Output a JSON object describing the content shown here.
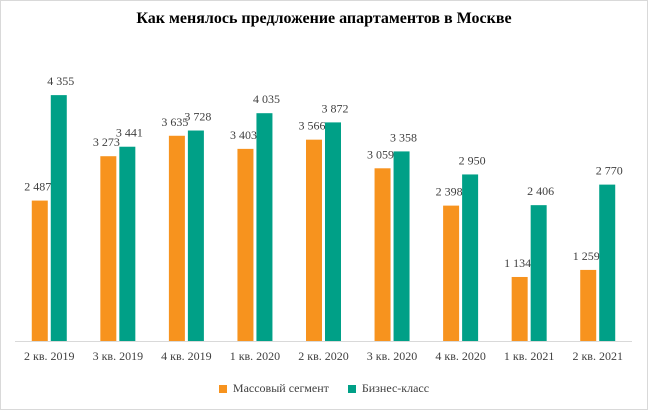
{
  "chart_data": {
    "type": "bar",
    "title": "Как менялось предложение апартаментов в Москве",
    "categories": [
      "2 кв. 2019",
      "3 кв. 2019",
      "4 кв. 2019",
      "1 кв. 2020",
      "2 кв. 2020",
      "3 кв. 2020",
      "4 кв. 2020",
      "1 кв. 2021",
      "2 кв. 2021"
    ],
    "series": [
      {
        "name": "Массовый сегмент",
        "color": "#f7931e",
        "values": [
          2487,
          3273,
          3635,
          3403,
          3566,
          3059,
          2398,
          1134,
          1259
        ],
        "labels": [
          "2 487",
          "3 273",
          "3 635",
          "3 403",
          "3 566",
          "3 059",
          "2 398",
          "1 134",
          "1 259"
        ]
      },
      {
        "name": "Бизнес-класс",
        "color": "#00a087",
        "values": [
          4355,
          3441,
          3728,
          4035,
          3872,
          3358,
          2950,
          2406,
          2770
        ],
        "labels": [
          "4 355",
          "3 441",
          "3 728",
          "4 035",
          "3 872",
          "3 358",
          "2 950",
          "2 406",
          "2 770"
        ]
      }
    ],
    "ylim": [
      0,
      4800
    ],
    "grid": false,
    "legend_position": "bottom"
  }
}
